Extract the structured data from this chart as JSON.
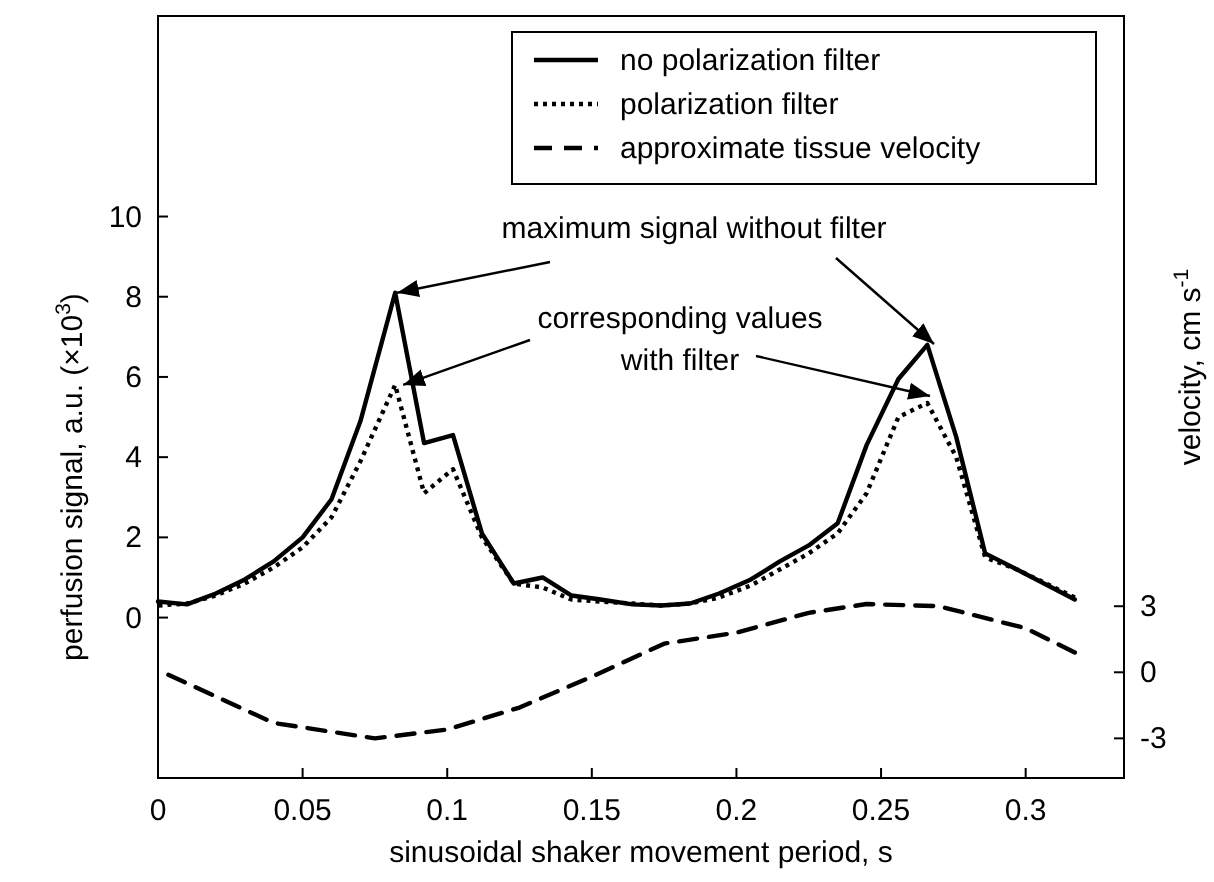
{
  "chart_data": {
    "type": "line",
    "xlabel": "sinusoidal shaker movement period, s",
    "ylabel": "perfusion signal, a.u. (×10$^{3}$)",
    "y2label": "velocity, cm s$^{-1}$",
    "xlim": [
      0,
      0.334
    ],
    "xticks": [
      0,
      0.05,
      0.1,
      0.15,
      0.2,
      0.25,
      0.3
    ],
    "ylim": [
      -4,
      15
    ],
    "yticks": [
      0,
      2,
      4,
      6,
      8,
      10
    ],
    "y2lim": [
      -4.8,
      29.8
    ],
    "y2ticks": [
      -3,
      0,
      3
    ],
    "legend": "top right",
    "grid": false,
    "annotations": [
      {
        "text": "maximum signal without filter",
        "x": 0.082,
        "y": 8.1
      },
      {
        "text": "corresponding values\nwith filter",
        "x": 0.082,
        "y": 5.8
      }
    ],
    "series": [
      {
        "name": "no polarization filter",
        "color": "#000000",
        "line_style": "solid",
        "x": [
          0,
          0.01,
          0.02,
          0.03,
          0.04,
          0.05,
          0.06,
          0.07,
          0.082,
          0.092,
          0.102,
          0.112,
          0.123,
          0.133,
          0.143,
          0.153,
          0.164,
          0.174,
          0.184,
          0.194,
          0.205,
          0.215,
          0.225,
          0.235,
          0.245,
          0.256,
          0.266,
          0.276,
          0.286,
          0.297,
          0.317
        ],
        "values": [
          0.4,
          0.33,
          0.6,
          0.95,
          1.4,
          2.0,
          2.95,
          4.9,
          8.1,
          4.35,
          4.55,
          2.1,
          0.85,
          1.0,
          0.55,
          0.45,
          0.33,
          0.3,
          0.35,
          0.6,
          0.95,
          1.4,
          1.8,
          2.35,
          4.3,
          5.95,
          6.8,
          4.5,
          1.6,
          1.2,
          0.45
        ]
      },
      {
        "name": "polarization filter",
        "color": "#000000",
        "line_style": "dotted",
        "x": [
          0,
          0.01,
          0.02,
          0.03,
          0.04,
          0.05,
          0.06,
          0.07,
          0.082,
          0.092,
          0.102,
          0.112,
          0.123,
          0.133,
          0.143,
          0.153,
          0.164,
          0.174,
          0.184,
          0.194,
          0.205,
          0.215,
          0.225,
          0.235,
          0.245,
          0.256,
          0.266,
          0.276,
          0.286,
          0.297,
          0.317
        ],
        "values": [
          0.3,
          0.35,
          0.55,
          0.85,
          1.25,
          1.75,
          2.5,
          3.9,
          5.8,
          3.1,
          3.7,
          2.0,
          0.85,
          0.75,
          0.45,
          0.4,
          0.35,
          0.3,
          0.35,
          0.5,
          0.8,
          1.2,
          1.6,
          2.1,
          3.1,
          5.0,
          5.35,
          4.0,
          1.5,
          1.2,
          0.5
        ]
      },
      {
        "name": "approximate tissue velocity",
        "color": "#000000",
        "line_style": "dashed",
        "axis": "y2",
        "x": [
          0,
          0.04,
          0.075,
          0.1,
          0.125,
          0.15,
          0.175,
          0.2,
          0.225,
          0.245,
          0.27,
          0.3,
          0.317
        ],
        "values": [
          0.1,
          -2.3,
          -3,
          -2.6,
          -1.6,
          -0.2,
          1.3,
          1.8,
          2.7,
          3.1,
          3.0,
          2.0,
          0.9
        ]
      }
    ]
  }
}
